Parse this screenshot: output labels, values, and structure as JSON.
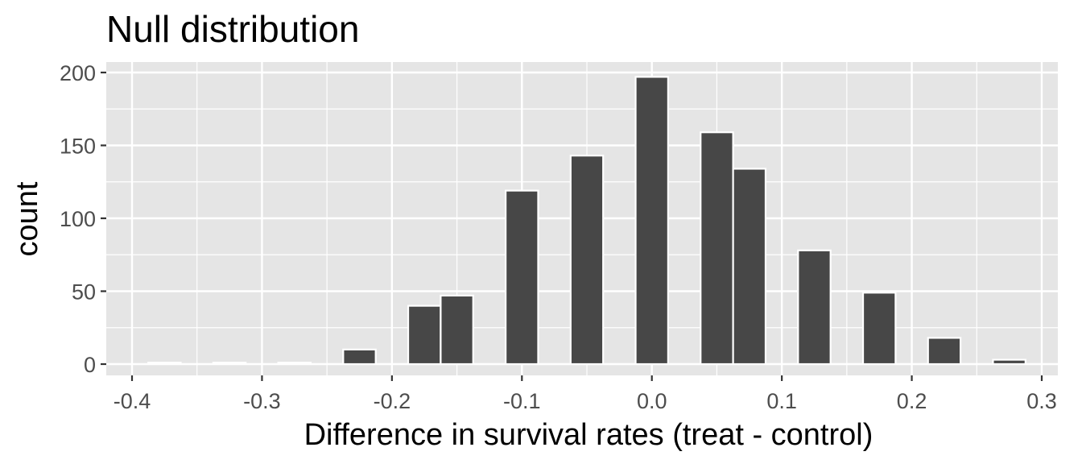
{
  "chart_data": {
    "type": "bar",
    "title": "Null distribution",
    "xlabel": "Difference in survival rates (treat - control)",
    "ylabel": "count",
    "xlim": [
      -0.4,
      0.3
    ],
    "ylim": [
      0,
      200
    ],
    "bin_width": 0.025,
    "x_ticks": [
      "-0.4",
      "-0.3",
      "-0.2",
      "-0.1",
      "0.0",
      "0.1",
      "0.2",
      "0.3"
    ],
    "x_tick_values": [
      -0.4,
      -0.3,
      -0.2,
      -0.1,
      0.0,
      0.1,
      0.2,
      0.3
    ],
    "y_ticks": [
      "0",
      "50",
      "100",
      "150",
      "200"
    ],
    "y_tick_values": [
      0,
      50,
      100,
      150,
      200
    ],
    "bins": [
      {
        "x": -0.375,
        "count": 1
      },
      {
        "x": -0.325,
        "count": 1
      },
      {
        "x": -0.275,
        "count": 1
      },
      {
        "x": -0.225,
        "count": 10
      },
      {
        "x": -0.175,
        "count": 40
      },
      {
        "x": -0.15,
        "count": 47
      },
      {
        "x": -0.1,
        "count": 119
      },
      {
        "x": -0.05,
        "count": 143
      },
      {
        "x": 0.0,
        "count": 197
      },
      {
        "x": 0.05,
        "count": 159
      },
      {
        "x": 0.075,
        "count": 134
      },
      {
        "x": 0.125,
        "count": 78
      },
      {
        "x": 0.175,
        "count": 49
      },
      {
        "x": 0.225,
        "count": 18
      },
      {
        "x": 0.275,
        "count": 3
      }
    ],
    "grid": true,
    "colors": {
      "panel_background": "#e5e5e5",
      "grid": "#ffffff",
      "bar_fill": "#474747",
      "bar_outline": "#ffffff",
      "tick_text": "#4d4d4d",
      "text": "#000000"
    }
  }
}
